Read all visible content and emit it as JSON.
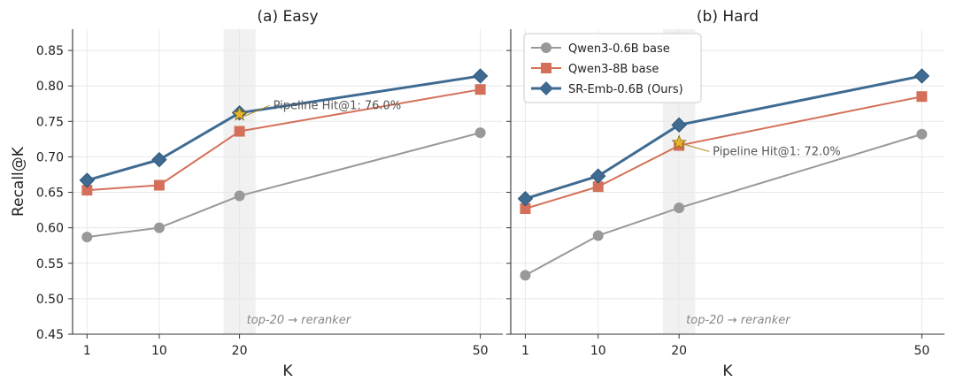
{
  "chart_data": [
    {
      "type": "line",
      "title": "(a) Easy",
      "xlabel": "K",
      "ylabel": "Recall@K",
      "x": [
        1,
        10,
        20,
        50
      ],
      "xticks": [
        1,
        10,
        20,
        50
      ],
      "ylim": [
        0.45,
        0.88
      ],
      "yticks": [
        0.45,
        0.5,
        0.55,
        0.6,
        0.65,
        0.7,
        0.75,
        0.8,
        0.85
      ],
      "grid": true,
      "series": [
        {
          "name": "Qwen3-0.6B base",
          "values": [
            0.587,
            0.6,
            0.645,
            0.734
          ],
          "color": "#999999",
          "marker": "circle"
        },
        {
          "name": "Qwen3-8B base",
          "values": [
            0.653,
            0.66,
            0.736,
            0.795
          ],
          "color": "#d4705a",
          "marker": "square"
        },
        {
          "name": "SR-Emb-0.6B (Ours)",
          "values": [
            0.667,
            0.696,
            0.762,
            0.814
          ],
          "color": "#3f6b92",
          "marker": "diamond"
        }
      ],
      "highlight_band": {
        "x_from": 18,
        "x_to": 22,
        "label": "top-20 → reranker"
      },
      "annotation": {
        "text": "Pipeline Hit@1: 76.0%",
        "x": 20,
        "y": 0.76,
        "marker": "star",
        "color": "#e6b52e"
      }
    },
    {
      "type": "line",
      "title": "(b) Hard",
      "xlabel": "K",
      "ylabel": "",
      "x": [
        1,
        10,
        20,
        50
      ],
      "xticks": [
        1,
        10,
        20,
        50
      ],
      "ylim": [
        0.45,
        0.88
      ],
      "yticks": [
        0.45,
        0.5,
        0.55,
        0.6,
        0.65,
        0.7,
        0.75,
        0.8,
        0.85
      ],
      "grid": true,
      "legend": "top-left",
      "series": [
        {
          "name": "Qwen3-0.6B base",
          "values": [
            0.533,
            0.589,
            0.628,
            0.732
          ],
          "color": "#999999",
          "marker": "circle"
        },
        {
          "name": "Qwen3-8B base",
          "values": [
            0.627,
            0.658,
            0.716,
            0.785
          ],
          "color": "#d4705a",
          "marker": "square"
        },
        {
          "name": "SR-Emb-0.6B (Ours)",
          "values": [
            0.641,
            0.673,
            0.745,
            0.814
          ],
          "color": "#3f6b92",
          "marker": "diamond"
        }
      ],
      "highlight_band": {
        "x_from": 18,
        "x_to": 22,
        "label": "top-20 → reranker"
      },
      "annotation": {
        "text": "Pipeline Hit@1: 72.0%",
        "x": 20,
        "y": 0.72,
        "marker": "star",
        "color": "#e6b52e"
      }
    }
  ]
}
